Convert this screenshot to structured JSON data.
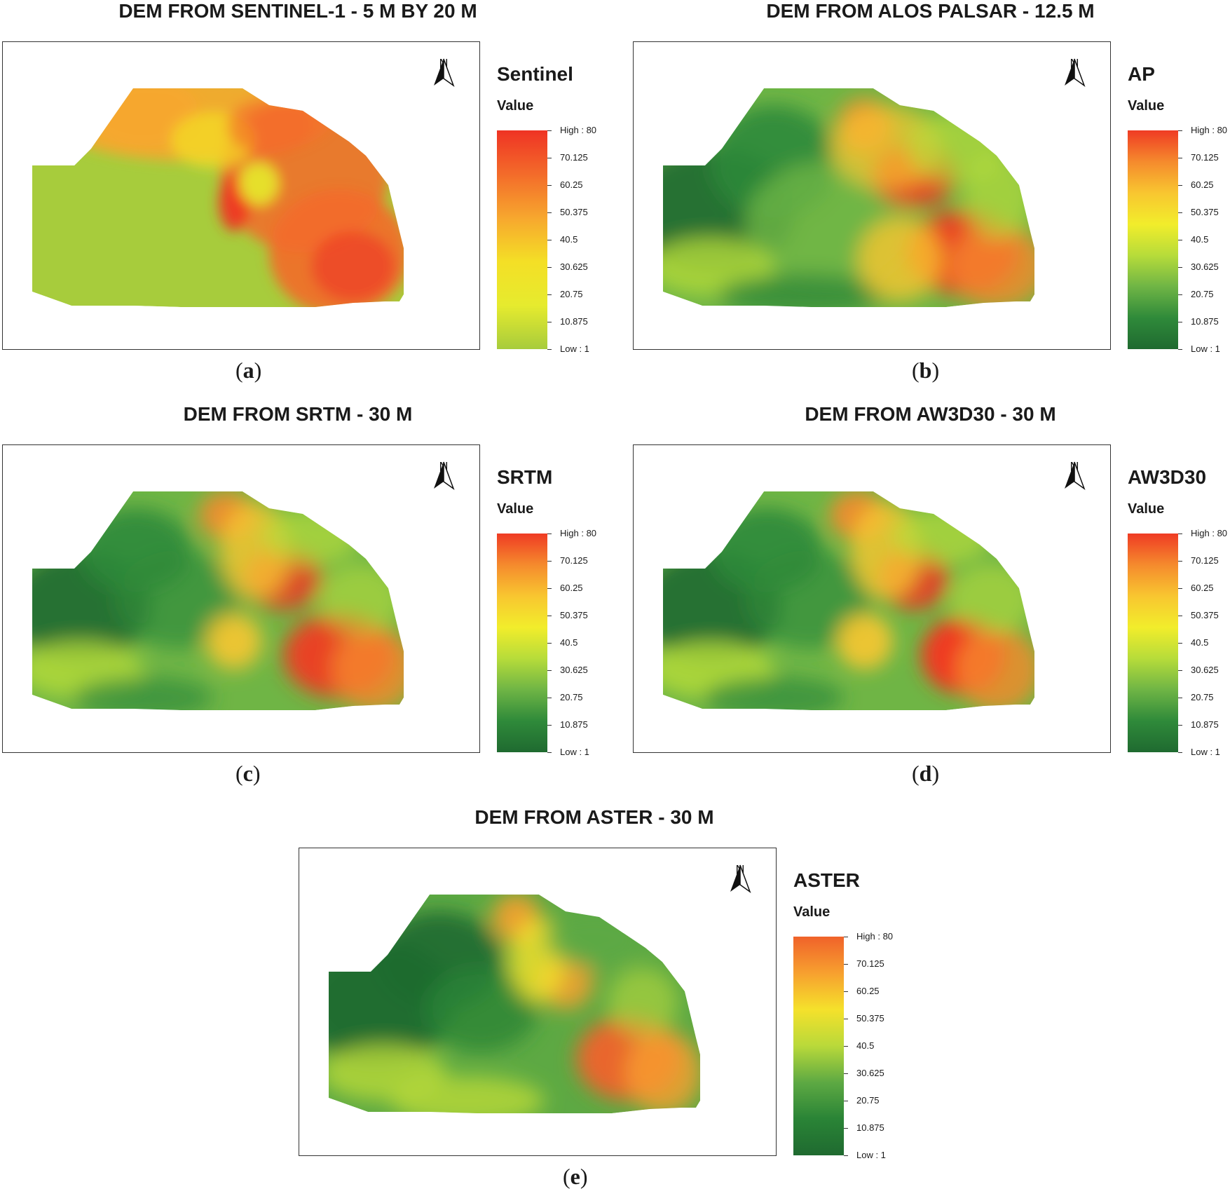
{
  "panels": [
    {
      "id": "a",
      "title": "DEM FROM SENTINEL-1  - 5 M BY 20 M",
      "legend_name": "Sentinel",
      "value_label": "Value",
      "ticks": [
        "High : 80",
        "70.125",
        "60.25",
        "50.375",
        "40.5",
        "30.625",
        "20.75",
        "10.875",
        "Low : 1"
      ],
      "north_label": "N",
      "sub_label_open": "(",
      "sub_label_letter": "a",
      "sub_label_close": ")",
      "colormap": "sentinel",
      "colors": [
        "#ef3324",
        "#f36b2a",
        "#f7a72e",
        "#f4df26",
        "#e6eb2e",
        "#a7cc3c"
      ]
    },
    {
      "id": "b",
      "title": "DEM FROM ALOS PALSAR - 12.5 M",
      "legend_name": "AP",
      "value_label": "Value",
      "ticks": [
        "High : 80",
        "70.125",
        "60.25",
        "50.375",
        "40.5",
        "30.625",
        "20.75",
        "10.875",
        "Low : 1"
      ],
      "north_label": "N",
      "sub_label_open": "(",
      "sub_label_letter": "b",
      "sub_label_close": ")",
      "colormap": "rdylgn",
      "colors": [
        "#ef3b24",
        "#f58a2d",
        "#f8c630",
        "#f2ed2b",
        "#b7dc3a",
        "#6fb545",
        "#2f8a3a",
        "#1f6a30"
      ]
    },
    {
      "id": "c",
      "title": "DEM FROM SRTM - 30 M",
      "legend_name": "SRTM",
      "value_label": "Value",
      "ticks": [
        "High : 80",
        "70.125",
        "60.25",
        "50.375",
        "40.5",
        "30.625",
        "20.75",
        "10.875",
        "Low : 1"
      ],
      "north_label": "N",
      "sub_label_open": "(",
      "sub_label_letter": "c",
      "sub_label_close": ")",
      "colormap": "rdylgn",
      "colors": [
        "#ef3b24",
        "#f58a2d",
        "#f8c630",
        "#f2ed2b",
        "#b7dc3a",
        "#6fb545",
        "#2f8a3a",
        "#1f6a30"
      ]
    },
    {
      "id": "d",
      "title": "DEM FROM AW3D30 - 30 M",
      "legend_name": "AW3D30",
      "value_label": "Value",
      "ticks": [
        "High : 80",
        "70.125",
        "60.25",
        "50.375",
        "40.5",
        "30.625",
        "20.75",
        "10.875",
        "Low : 1"
      ],
      "north_label": "N",
      "sub_label_open": "(",
      "sub_label_letter": "d",
      "sub_label_close": ")",
      "colormap": "rdylgn",
      "colors": [
        "#ef3b24",
        "#f58a2d",
        "#f8c630",
        "#f2ed2b",
        "#b7dc3a",
        "#6fb545",
        "#2f8a3a",
        "#1f6a30"
      ]
    },
    {
      "id": "e",
      "title": "DEM FROM ASTER - 30 M",
      "legend_name": "ASTER",
      "value_label": "Value",
      "ticks": [
        "High : 80",
        "70.125",
        "60.25",
        "50.375",
        "40.5",
        "30.625",
        "20.75",
        "10.875",
        "Low : 1"
      ],
      "north_label": "N",
      "sub_label_open": "(",
      "sub_label_letter": "e",
      "sub_label_close": ")",
      "colormap": "aster",
      "colors": [
        "#f0622a",
        "#f7a02f",
        "#f5e12b",
        "#b9d93a",
        "#5da943",
        "#2a8436",
        "#1f6a30"
      ]
    }
  ]
}
